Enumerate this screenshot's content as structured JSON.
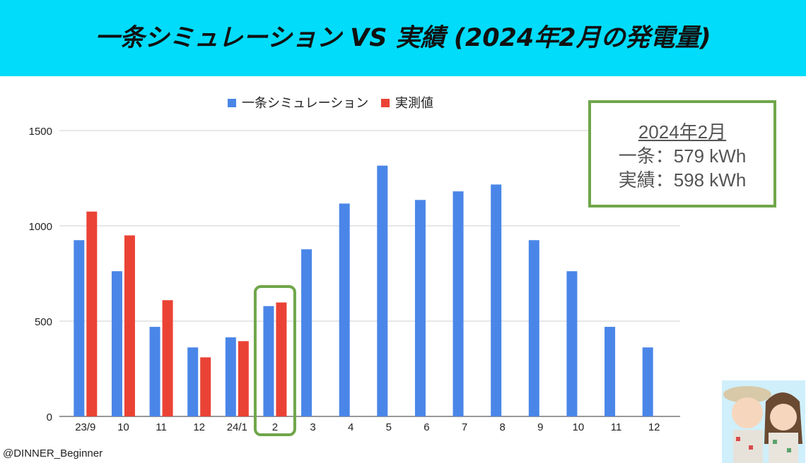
{
  "title": "一条シミュレーション VS 実績 (2024年2月の発電量)",
  "info_box": {
    "heading": "2024年2月",
    "line1": "一条：579 kWh",
    "line2": "実績：598 kWh"
  },
  "credit": "@DINNER_Beginner",
  "colors": {
    "sim": "#4a86e8",
    "actual": "#ea4335",
    "highlight": "#6fa64a",
    "banner": "#00dcfa"
  },
  "chart_data": {
    "type": "bar",
    "categories": [
      "23/9",
      "10",
      "11",
      "12",
      "24/1",
      "2",
      "3",
      "4",
      "5",
      "6",
      "7",
      "8",
      "9",
      "10",
      "11",
      "12"
    ],
    "series": [
      {
        "name": "一条シミュレーション",
        "values": [
          925,
          762,
          470,
          362,
          415,
          579,
          877,
          1117,
          1316,
          1136,
          1181,
          1217,
          925,
          762,
          470,
          362
        ]
      },
      {
        "name": "実測値",
        "values": [
          1075,
          950,
          610,
          310,
          395,
          598,
          null,
          null,
          null,
          null,
          null,
          null,
          null,
          null,
          null,
          null
        ]
      }
    ],
    "ylim": [
      0,
      1500
    ],
    "yticks": [
      0,
      500,
      1000,
      1500
    ],
    "highlight_category": "2",
    "legend_position": "top",
    "grid": true
  }
}
